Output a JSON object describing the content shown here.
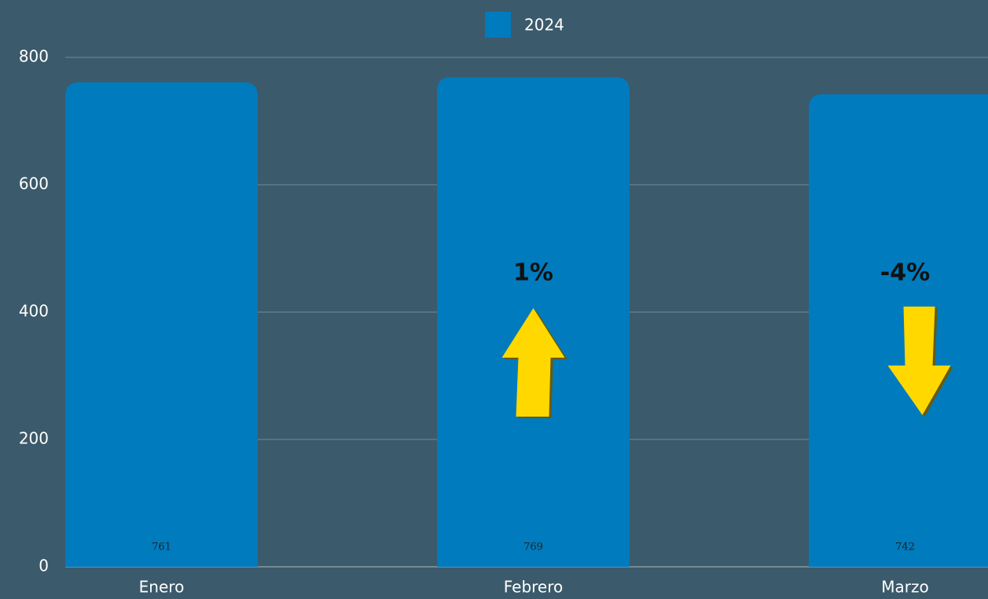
{
  "chart_data": {
    "type": "bar",
    "categories": [
      "Enero",
      "Febrero",
      "Marzo"
    ],
    "series": [
      {
        "name": "2024",
        "color": "#007bbd",
        "values": [
          761,
          769,
          742
        ]
      }
    ],
    "ylim": [
      0,
      800
    ],
    "yticks": [
      0,
      200,
      400,
      600,
      800
    ],
    "grid": true,
    "legend": "top",
    "annotations": [
      {
        "text": "1%",
        "category": "Febrero",
        "arrow": "up"
      },
      {
        "text": "-4%",
        "category": "Marzo",
        "arrow": "down"
      }
    ]
  }
}
